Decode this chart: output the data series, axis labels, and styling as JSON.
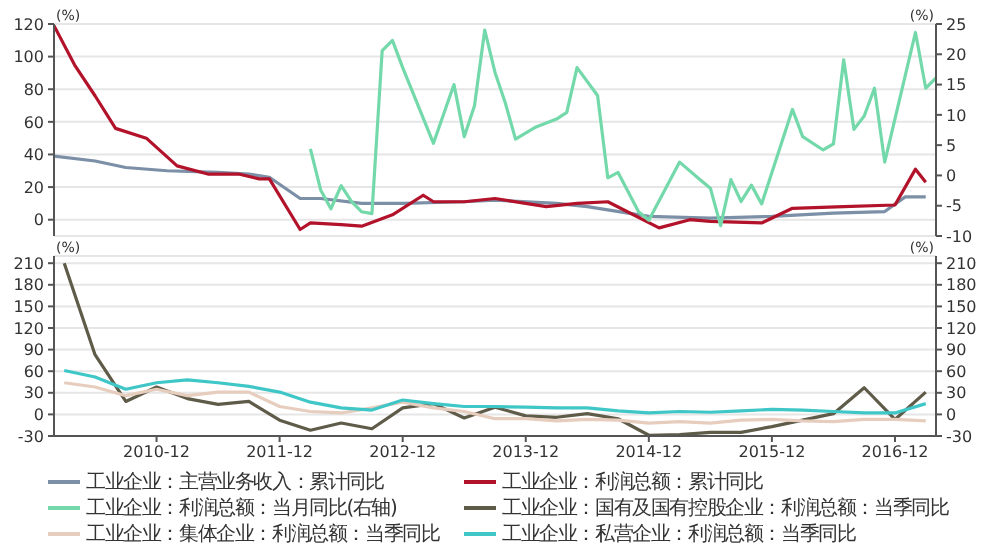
{
  "chart_data": [
    {
      "type": "line",
      "ylabel": "(%)",
      "y2label": "(%)",
      "xlim": [
        "2010-02",
        "2017-04"
      ],
      "ylim": [
        -10,
        120
      ],
      "yticks": [
        0,
        20,
        40,
        60,
        80,
        100,
        120
      ],
      "y2lim": [
        -10,
        25
      ],
      "y2ticks": [
        -10,
        -5,
        0,
        5,
        10,
        15,
        20,
        25
      ],
      "grid": "y",
      "legend": "bottom",
      "marker": "none",
      "tick_labels": "y",
      "series": [
        {
          "name": "工业企业：主营业务收入：累计同比",
          "color": "#7b8fa6",
          "x": [
            "2010-02",
            "2010-06",
            "2010-09",
            "2011-01",
            "2011-06",
            "2011-09",
            "2011-11",
            "2012-02",
            "2012-04",
            "2012-08",
            "2012-12",
            "2013-06",
            "2013-09",
            "2014-03",
            "2014-06",
            "2014-12",
            "2015-06",
            "2015-12",
            "2016-06",
            "2016-11",
            "2017-01",
            "2017-03"
          ],
          "values": [
            39,
            36,
            32,
            30,
            29,
            28,
            26,
            13,
            13,
            10,
            10,
            11,
            12,
            10,
            8,
            2,
            1,
            2,
            4,
            5,
            14,
            14
          ]
        },
        {
          "name": "工业企业：利润总额：累计同比",
          "color": "#b3122b",
          "x": [
            "2010-02",
            "2010-04",
            "2010-06",
            "2010-08",
            "2010-11",
            "2011-02",
            "2011-05",
            "2011-08",
            "2011-10",
            "2011-11",
            "2012-02",
            "2012-03",
            "2012-06",
            "2012-08",
            "2012-11",
            "2013-02",
            "2013-03",
            "2013-06",
            "2013-09",
            "2014-02",
            "2014-05",
            "2014-08",
            "2015-01",
            "2015-04",
            "2015-06",
            "2015-11",
            "2016-02",
            "2016-07",
            "2016-12",
            "2017-02",
            "2017-03"
          ],
          "values": [
            119,
            95,
            76,
            56,
            50,
            33,
            28,
            28,
            25,
            25,
            -6,
            -2,
            -3,
            -4,
            3,
            15,
            11,
            11,
            13,
            8,
            10,
            11,
            -5,
            0,
            -1,
            -2,
            7,
            8,
            9,
            31,
            23
          ]
        },
        {
          "name": "工业企业：利润总额：当月同比(右轴)",
          "color": "#74d9aa",
          "axis": "y2",
          "x": [
            "2012-03",
            "2012-04",
            "2012-05",
            "2012-06",
            "2012-07",
            "2012-08",
            "2012-09",
            "2012-10",
            "2012-11",
            "2012-12",
            "2013-03",
            "2013-05",
            "2013-06",
            "2013-07",
            "2013-08",
            "2013-09",
            "2013-10",
            "2013-11",
            "2014-01",
            "2014-03",
            "2014-04",
            "2014-05",
            "2014-07",
            "2014-08",
            "2014-09",
            "2014-11",
            "2014-12",
            "2015-03",
            "2015-05",
            "2015-06",
            "2015-07",
            "2015-08",
            "2015-09",
            "2015-10",
            "2015-11",
            "2016-02",
            "2016-03",
            "2016-05",
            "2016-06",
            "2016-07",
            "2016-08",
            "2016-09",
            "2016-10",
            "2016-11",
            "2017-02",
            "2017-03",
            "2017-04"
          ],
          "values": [
            4.4,
            -2.4,
            -5.5,
            -1.7,
            -4.3,
            -6,
            -6.3,
            20.6,
            22.3,
            17.8,
            5.3,
            15,
            6.4,
            11.5,
            24,
            17,
            12,
            6,
            8,
            9.3,
            10.4,
            17.8,
            13.2,
            -0.4,
            0.5,
            -6,
            -7.4,
            2.2,
            -0.7,
            -2.1,
            -8.3,
            -0.7,
            -4.3,
            -1.6,
            -4.7,
            10.9,
            6.4,
            4.2,
            5.2,
            19.1,
            7.6,
            9.8,
            14.4,
            2.2,
            23.6,
            14.4,
            16.1
          ]
        }
      ]
    },
    {
      "type": "line",
      "ylabel": "(%)",
      "y2label": "(%)",
      "x": [
        "2010-03",
        "2010-06",
        "2010-09",
        "2010-12",
        "2011-03",
        "2011-06",
        "2011-09",
        "2011-12",
        "2012-03",
        "2012-06",
        "2012-09",
        "2012-12",
        "2013-03",
        "2013-06",
        "2013-09",
        "2013-12",
        "2014-03",
        "2014-06",
        "2014-09",
        "2014-12",
        "2015-03",
        "2015-06",
        "2015-09",
        "2015-12",
        "2016-03",
        "2016-06",
        "2016-09",
        "2016-12",
        "2017-03"
      ],
      "xlim": [
        "2010-02",
        "2017-04"
      ],
      "xticks": [
        "2010-12",
        "2011-12",
        "2012-12",
        "2013-12",
        "2014-12",
        "2015-12",
        "2016-12"
      ],
      "ylim": [
        -30,
        220
      ],
      "yticks": [
        -30,
        0,
        30,
        60,
        90,
        120,
        150,
        180,
        210
      ],
      "y2lim": [
        -30,
        220
      ],
      "y2ticks": [
        -30,
        0,
        30,
        60,
        90,
        120,
        150,
        180,
        210
      ],
      "grid": "y",
      "legend": "bottom",
      "marker": "none",
      "series": [
        {
          "name": "工业企业：国有及国有控股企业：利润总额：当季同比",
          "color": "#5f5b49",
          "values": [
            210,
            83,
            18,
            38,
            22,
            14,
            18,
            -8,
            -22,
            -12,
            -20,
            9,
            15,
            -5,
            10,
            -2,
            -4,
            1,
            -6,
            -29,
            -28,
            -25,
            -25,
            -17,
            -8,
            1,
            37,
            -7,
            31
          ]
        },
        {
          "name": "工业企业：集体企业：利润总额：当季同比",
          "color": "#e6cdbd",
          "values": [
            44,
            38,
            26,
            35,
            26,
            31,
            31,
            11,
            4,
            2,
            9,
            17,
            9,
            4,
            -6,
            -6,
            -9,
            -7,
            -8,
            -12,
            -10,
            -12,
            -8,
            -7,
            -9,
            -10,
            -7,
            -7,
            -9
          ]
        },
        {
          "name": "工业企业：私营企业：利润总额：当季同比",
          "color": "#3fc6c6",
          "values": [
            61,
            52,
            35,
            44,
            48,
            44,
            39,
            31,
            17,
            9,
            6,
            20,
            15,
            11,
            11,
            10,
            9,
            9,
            5,
            2,
            4,
            3,
            5,
            7,
            6,
            4,
            2,
            2,
            15
          ]
        }
      ]
    }
  ]
}
